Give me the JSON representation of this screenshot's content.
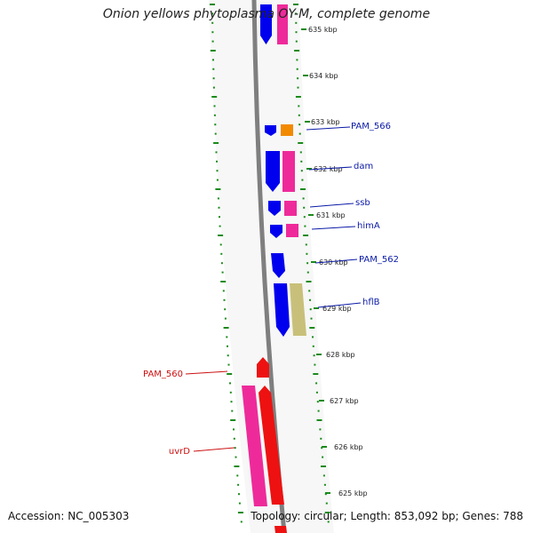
{
  "title": "Onion yellows phytoplasma OY-M, complete genome",
  "footer": {
    "accession": "Accession: NC_005303",
    "summary": "Topology: circular; Length: 853,092 bp; Genes: 788"
  },
  "kbp_labels": [
    "635 kbp",
    "634 kbp",
    "633 kbp",
    "632 kbp",
    "631 kbp",
    "630 kbp",
    "629 kbp",
    "628 kbp",
    "627 kbp",
    "626 kbp",
    "625 kbp"
  ],
  "gene_labels": [
    {
      "name": "PAM_566",
      "color": "#0a1aa6"
    },
    {
      "name": "dam",
      "color": "#0a1aa6"
    },
    {
      "name": "ssb",
      "color": "#0a1aa6"
    },
    {
      "name": "himA",
      "color": "#0a1aa6"
    },
    {
      "name": "PAM_562",
      "color": "#0a1aa6"
    },
    {
      "name": "hflB",
      "color": "#0a1aa6"
    },
    {
      "name": "PAM_560",
      "color": "#cc1111"
    },
    {
      "name": "uvrD",
      "color": "#cc1111"
    }
  ],
  "colors": {
    "forward_gene": "#0000ee",
    "reverse_gene": "#ee2a9a",
    "orange_gene": "#f28a00",
    "olive_gene": "#c8c07a",
    "red_gene": "#ee1111",
    "dot_ring": "#1a8a1a",
    "backbone": "#888888"
  }
}
